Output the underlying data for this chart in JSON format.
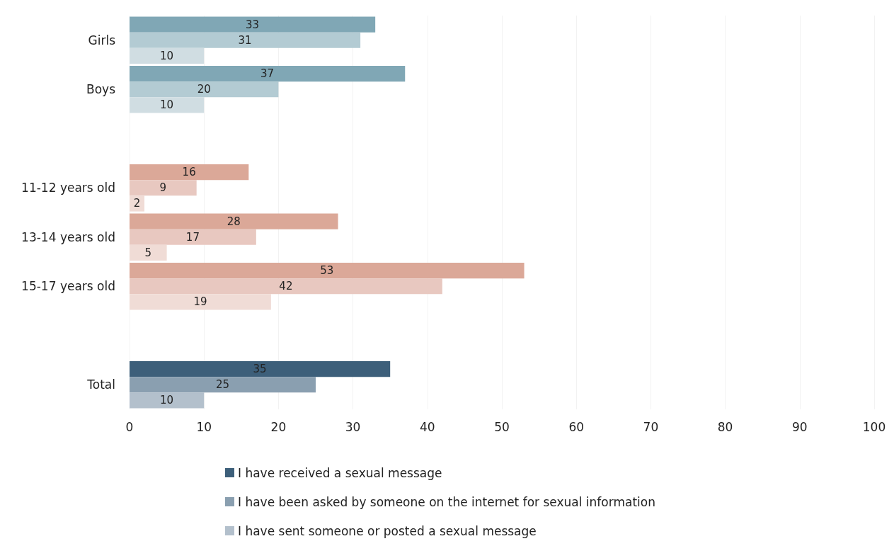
{
  "chart_data": {
    "type": "bar",
    "orientation": "horizontal",
    "categories": [
      "Girls",
      "Boys",
      null,
      "11-12 years old",
      "13-14 years old",
      "15-17 years old",
      null,
      "Total"
    ],
    "series": [
      {
        "name": "I have received a sexual message",
        "color": "#3d5f7a",
        "values": [
          33,
          37,
          null,
          16,
          28,
          53,
          null,
          35
        ],
        "colors": [
          "#80a7b5",
          "#80a7b5",
          null,
          "#dba898",
          "#dba898",
          "#dba898",
          null,
          "#3d5f7a"
        ]
      },
      {
        "name": "I have been asked by someone on the internet for sexual information",
        "color": "#8a9fb0",
        "values": [
          31,
          20,
          null,
          9,
          17,
          42,
          null,
          25
        ],
        "colors": [
          "#b3cbd3",
          "#b3cbd3",
          null,
          "#e8c8c0",
          "#e8c8c0",
          "#e8c8c0",
          null,
          "#8a9fb0"
        ]
      },
      {
        "name": "I have sent someone or posted a sexual message",
        "color": "#b3c0cc",
        "values": [
          10,
          10,
          null,
          2,
          5,
          19,
          null,
          10
        ],
        "colors": [
          "#d0dde2",
          "#d0dde2",
          null,
          "#f0dcd6",
          "#f0dcd6",
          "#f0dcd6",
          null,
          "#b3c0cc"
        ]
      }
    ],
    "xlim": [
      0,
      100
    ],
    "xticks": [
      0,
      10,
      20,
      30,
      40,
      50,
      60,
      70,
      80,
      90,
      100
    ],
    "data_labels": true,
    "grid": "x",
    "legend": "bottom"
  }
}
